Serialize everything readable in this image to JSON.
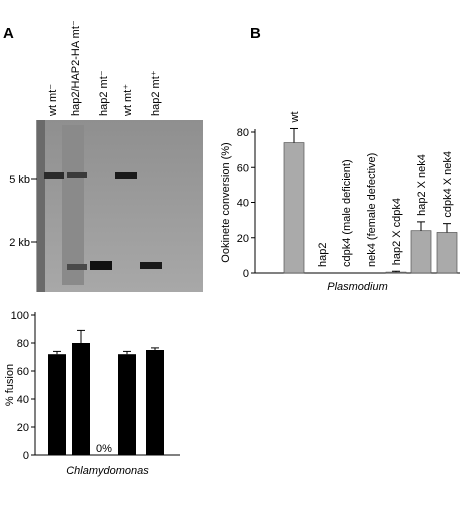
{
  "panels": [
    "A",
    "B"
  ],
  "gel": {
    "lanes": [
      "wt mt⁻",
      "hap2/HAP2-HA mt⁻",
      "hap2 mt⁻",
      "wt mt⁺",
      "hap2 mt⁺"
    ],
    "sizes": [
      "5 kb",
      "2 kb"
    ]
  },
  "chart_data": [
    {
      "type": "bar",
      "ylabel": "% fusion",
      "xlabel": "Chlamydomonas",
      "values": [
        72,
        80,
        0,
        72,
        75
      ],
      "errors": [
        2,
        9,
        0,
        2,
        1.5
      ],
      "value_labels": [
        null,
        null,
        "0%",
        null,
        null
      ],
      "color": "#000000",
      "ylim": [
        0,
        100
      ],
      "yticks": [
        0,
        20,
        40,
        60,
        80,
        100
      ]
    },
    {
      "type": "bar",
      "ylabel": "Ookinete conversion (%)",
      "xlabel": "Plasmodium",
      "categories": [
        "wt",
        "hap2",
        "cdpk4 (male deficient)",
        "nek4 (female defective)",
        "hap2 X cdpk4",
        "hap2 X nek4",
        "cdpk4 X nek4"
      ],
      "values": [
        74,
        0,
        0,
        0,
        0.5,
        24,
        23
      ],
      "errors": [
        8,
        0,
        0,
        0,
        0.5,
        5,
        5
      ],
      "color": "#aaaaaa",
      "ylim": [
        0,
        80
      ],
      "yticks": [
        0,
        20,
        40,
        60,
        80
      ]
    }
  ]
}
